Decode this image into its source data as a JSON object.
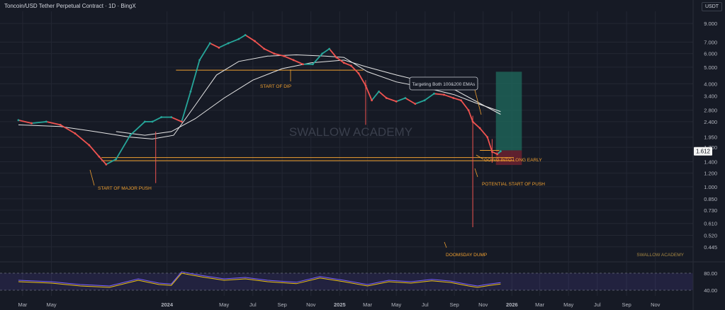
{
  "header": {
    "title": "Toncoin/USD Tether Perpetual Contract · 1D · BingX",
    "currency": "USDT"
  },
  "colors": {
    "background": "#161a25",
    "grid": "#232733",
    "axis_text": "#b2b5be",
    "candle_up": "#26a69a",
    "candle_down": "#ef5350",
    "ema": "#e6e6e6",
    "annotation": "#f0a030",
    "rsi": "#7b61ff",
    "rsi_signal": "#f0c419",
    "target_zone": "#1f6b5e",
    "stop_zone": "#6b2230"
  },
  "chart_data": {
    "type": "line",
    "price_scale": "log",
    "y_ticks": [
      "9.000",
      "7.000",
      "6.000",
      "5.000",
      "4.000",
      "3.400",
      "2.800",
      "2.400",
      "1.950",
      "1.700",
      "1.400",
      "1.200",
      "1.000",
      "0.850",
      "0.730",
      "0.610",
      "0.520",
      "0.445"
    ],
    "x_ticks": [
      "Mar",
      "May",
      "2024",
      "May",
      "Jul",
      "Sep",
      "Nov",
      "2025",
      "Mar",
      "May",
      "Jul",
      "Sep",
      "Nov",
      "2026",
      "Mar",
      "May",
      "Jul",
      "Sep",
      "Nov"
    ],
    "series": [
      {
        "x": [
          "2023-02-20",
          "2023-03-20",
          "2023-04-20",
          "2023-05-20",
          "2023-06-20",
          "2023-07-20",
          "2023-08-10",
          "2023-08-25",
          "2023-09-15",
          "2023-10-15",
          "2023-11-15",
          "2023-12-01",
          "2023-12-20",
          "2024-01-10",
          "2024-02-01",
          "2024-02-20",
          "2024-03-10",
          "2024-04-01",
          "2024-04-20",
          "2024-05-10",
          "2024-06-01",
          "2024-06-15",
          "2024-07-05",
          "2024-07-25",
          "2024-08-15",
          "2024-09-05",
          "2024-09-25",
          "2024-10-15",
          "2024-11-05",
          "2024-11-25",
          "2024-12-10",
          "2024-12-25",
          "2025-01-10",
          "2025-01-25",
          "2025-02-10",
          "2025-02-25",
          "2025-03-10",
          "2025-03-25",
          "2025-04-10",
          "2025-05-01",
          "2025-05-20",
          "2025-06-10",
          "2025-06-30",
          "2025-07-20",
          "2025-08-10",
          "2025-08-30",
          "2025-09-15",
          "2025-10-01",
          "2025-10-10",
          "2025-10-25",
          "2025-11-10",
          "2025-11-20",
          "2025-12-01",
          "2025-12-08"
        ],
        "values": [
          2.45,
          2.35,
          2.4,
          2.3,
          2.05,
          1.75,
          1.5,
          1.35,
          1.45,
          2.0,
          2.4,
          2.4,
          2.55,
          2.55,
          2.4,
          3.6,
          5.5,
          6.9,
          6.5,
          6.9,
          7.3,
          7.7,
          7.1,
          6.4,
          6.0,
          5.8,
          5.5,
          5.2,
          5.2,
          6.0,
          6.4,
          5.7,
          5.3,
          5.1,
          4.6,
          3.9,
          3.2,
          3.6,
          3.3,
          3.15,
          3.3,
          3.05,
          3.2,
          3.5,
          3.45,
          3.3,
          3.2,
          2.8,
          2.4,
          2.2,
          1.95,
          1.6,
          1.55,
          1.612
        ]
      }
    ],
    "ema_100": {
      "x": [
        "2023-02-20",
        "2023-05-20",
        "2023-08-01",
        "2023-10-15",
        "2023-12-01",
        "2024-01-15",
        "2024-03-01",
        "2024-04-15",
        "2024-06-01",
        "2024-08-01",
        "2024-10-01",
        "2024-12-01",
        "2025-01-10",
        "2025-03-01",
        "2025-05-01",
        "2025-07-01",
        "2025-09-01",
        "2025-10-15",
        "2025-12-08"
      ],
      "values": [
        2.3,
        2.25,
        2.1,
        1.95,
        1.9,
        2.0,
        3.0,
        4.5,
        5.4,
        5.8,
        5.9,
        5.8,
        5.7,
        4.7,
        4.1,
        3.8,
        3.45,
        3.1,
        2.75
      ]
    },
    "ema_200": {
      "x": [
        "2023-09-15",
        "2023-11-15",
        "2024-01-10",
        "2024-03-01",
        "2024-05-01",
        "2024-07-01",
        "2024-09-01",
        "2024-11-01",
        "2025-01-10",
        "2025-03-01",
        "2025-05-01",
        "2025-07-01",
        "2025-09-01",
        "2025-11-01",
        "2025-12-08"
      ],
      "values": [
        2.1,
        2.0,
        2.1,
        2.5,
        3.3,
        4.2,
        4.9,
        5.3,
        5.5,
        5.0,
        4.5,
        4.1,
        3.7,
        3.0,
        2.65
      ]
    },
    "horizontal_levels": [
      {
        "value": 4.8,
        "label": "START OF DIP"
      },
      {
        "value": 1.48
      },
      {
        "value": 1.42
      },
      {
        "value": 1.63
      }
    ],
    "current_price": "1.612",
    "annotations": [
      {
        "text": "START OF MAJOR PUSH"
      },
      {
        "text": "START OF DIP"
      },
      {
        "text": "Targeting Both 100&200 EMAs"
      },
      {
        "text": "GOING INTO LONG EARLY"
      },
      {
        "text": "POTENTIAL START OF PUSH"
      },
      {
        "text": "DOOMSDAY DUMP"
      }
    ],
    "watermark": "SWALLOW ACADEMY",
    "watermark_small": "SWALLOW ACADEMY",
    "rsi": {
      "y_ticks": [
        "80.00",
        "40.00"
      ],
      "x": [
        "2023-02-20",
        "2023-05-01",
        "2023-07-01",
        "2023-09-01",
        "2023-11-01",
        "2023-12-15",
        "2024-01-10",
        "2024-02-01",
        "2024-03-15",
        "2024-05-01",
        "2024-06-15",
        "2024-08-01",
        "2024-10-01",
        "2024-11-20",
        "2025-01-10",
        "2025-03-01",
        "2025-04-15",
        "2025-06-01",
        "2025-07-15",
        "2025-08-25",
        "2025-10-01",
        "2025-10-20",
        "2025-11-15",
        "2025-12-08"
      ],
      "values": [
        55,
        50,
        40,
        35,
        60,
        45,
        42,
        85,
        72,
        60,
        65,
        55,
        48,
        68,
        55,
        40,
        55,
        50,
        58,
        52,
        40,
        35,
        42,
        47
      ]
    }
  }
}
